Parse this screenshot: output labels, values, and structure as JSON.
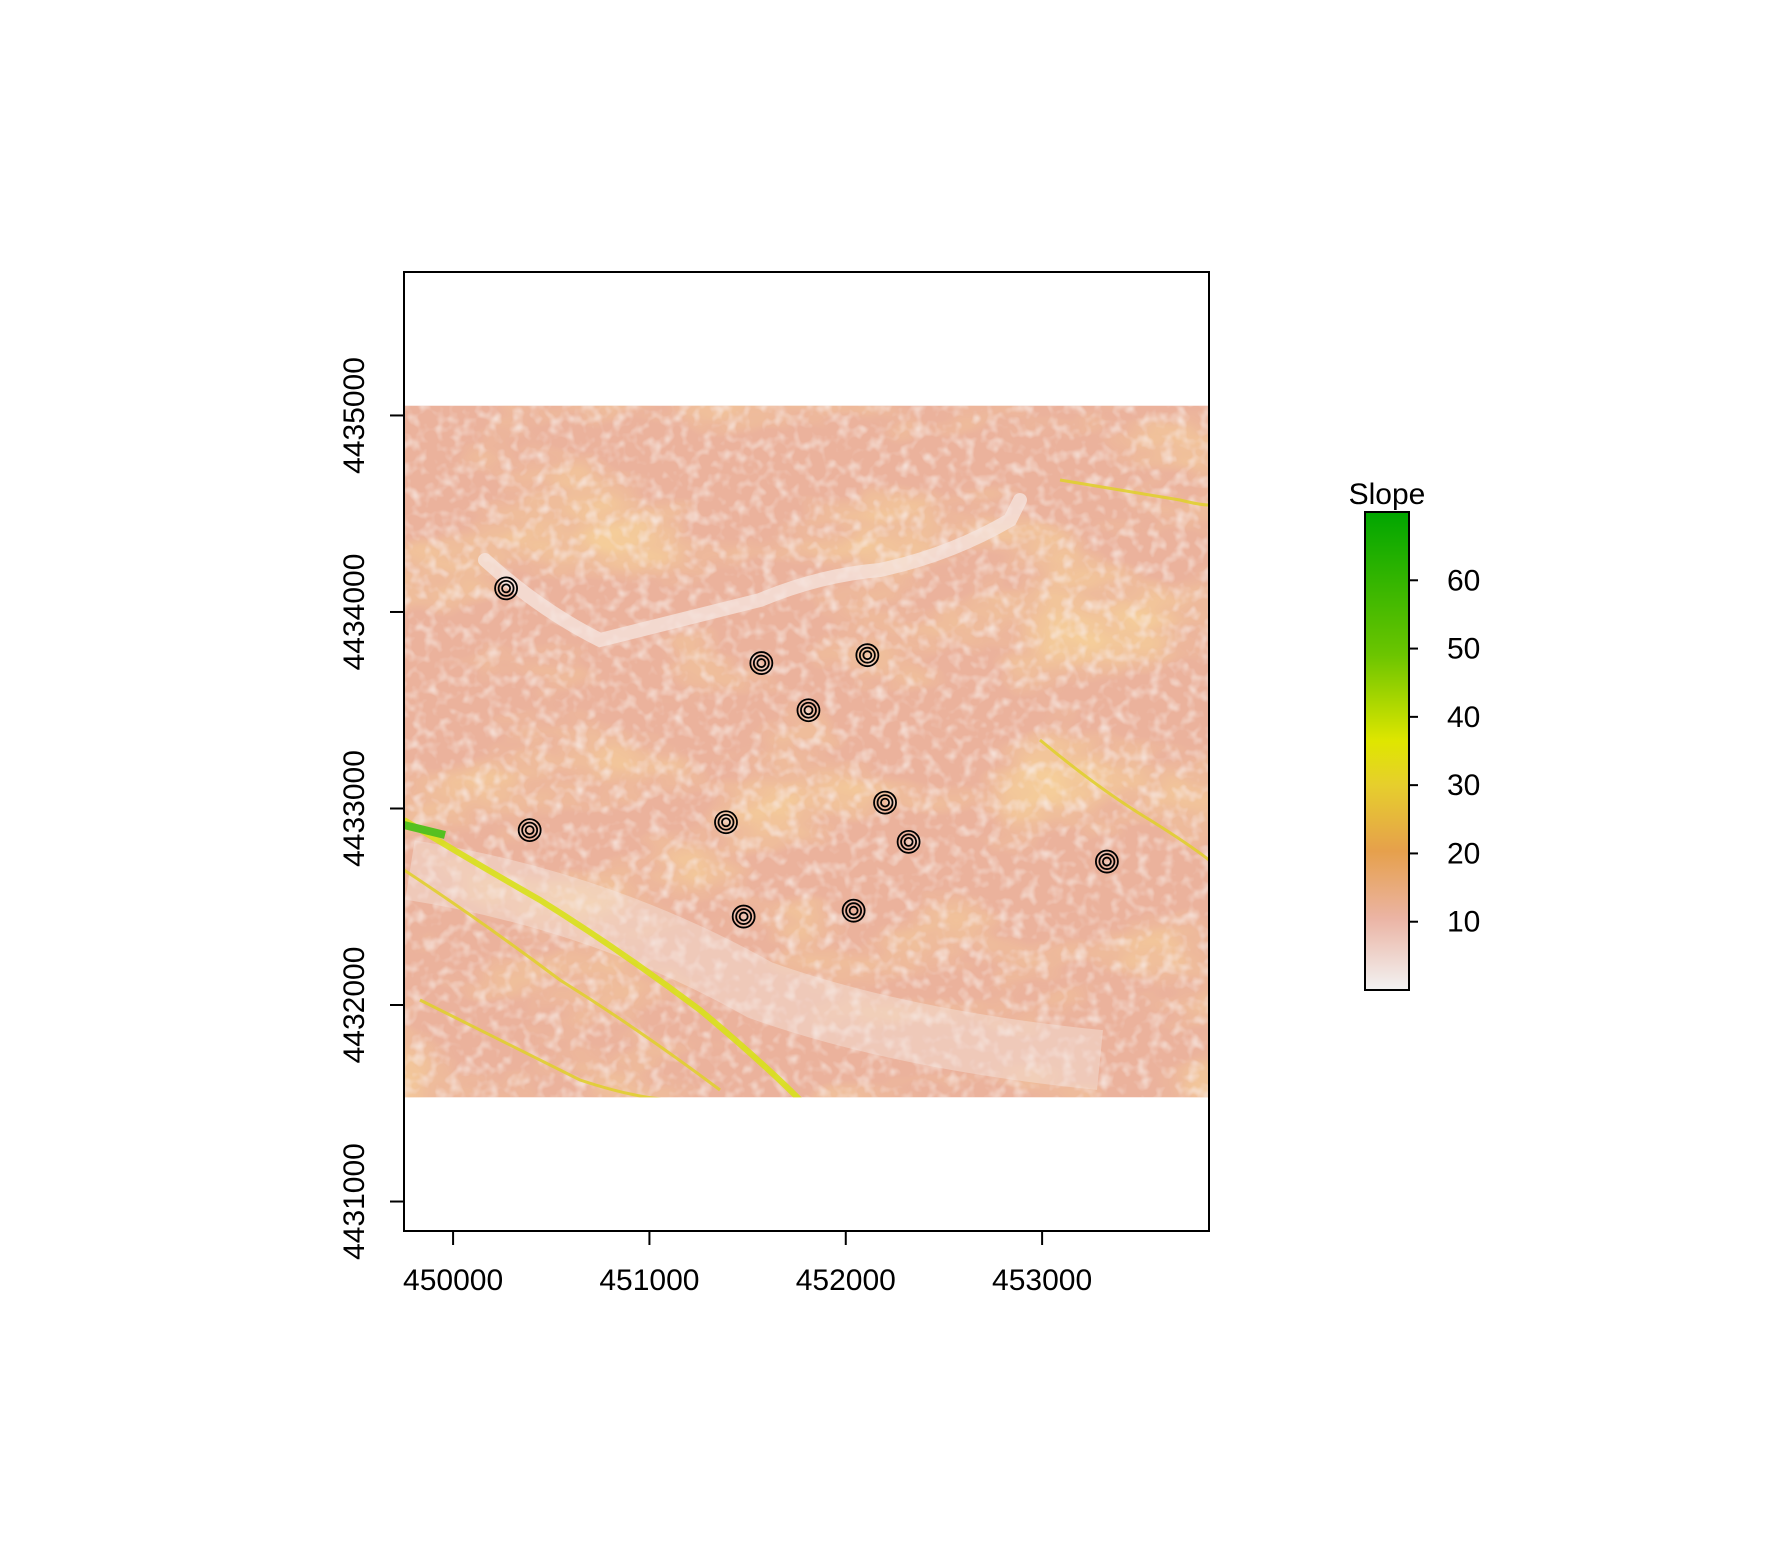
{
  "chart_data": {
    "type": "raster-map",
    "x_ticks": [
      "450000",
      "451000",
      "452000",
      "453000"
    ],
    "y_ticks": [
      "4431000",
      "4432000",
      "4433000",
      "4434000",
      "4435000"
    ],
    "x_tick_values": [
      450000,
      451000,
      452000,
      453000
    ],
    "y_tick_values": [
      4431000,
      4432000,
      4433000,
      4434000,
      4435000
    ],
    "xlim": [
      449750,
      453850
    ],
    "ylim": [
      4430850,
      4435730
    ],
    "raster_extent": {
      "xmin": 449750,
      "xmax": 453850,
      "ymin": 4431530,
      "ymax": 4435050
    },
    "legend": {
      "title": "Slope",
      "ticks": [
        "10",
        "20",
        "30",
        "40",
        "50",
        "60"
      ],
      "tick_values": [
        10,
        20,
        30,
        40,
        50,
        60
      ],
      "range": [
        0,
        70
      ],
      "colors": [
        "#f2f2f2",
        "#ebb4a4",
        "#e6a04c",
        "#e6cf2c",
        "#dfe600",
        "#6cc500",
        "#00a600"
      ]
    },
    "points": [
      {
        "x": 450270,
        "y": 4434120
      },
      {
        "x": 451570,
        "y": 4433740
      },
      {
        "x": 452110,
        "y": 4433780
      },
      {
        "x": 451810,
        "y": 4433500
      },
      {
        "x": 450390,
        "y": 4432890
      },
      {
        "x": 451390,
        "y": 4432930
      },
      {
        "x": 452200,
        "y": 4433030
      },
      {
        "x": 452320,
        "y": 4432830
      },
      {
        "x": 453330,
        "y": 4432730
      },
      {
        "x": 451480,
        "y": 4432450
      },
      {
        "x": 452040,
        "y": 4432480
      }
    ]
  }
}
